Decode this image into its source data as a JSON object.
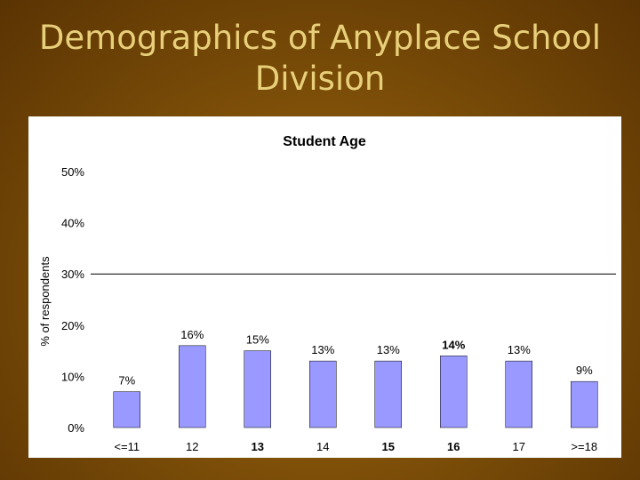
{
  "slide": {
    "title_line1": "Demographics of Anyplace School",
    "title_line2": "Division"
  },
  "chart_data": {
    "type": "bar",
    "title": "Student Age",
    "ylabel": "% of respondents",
    "xlabel": "",
    "categories": [
      "<=11",
      "12",
      "13",
      "14",
      "15",
      "16",
      "17",
      ">=18"
    ],
    "values": [
      7,
      16,
      15,
      13,
      13,
      14,
      13,
      9
    ],
    "bold_categories": [
      "13",
      "15",
      "16"
    ],
    "bold_value_labels": [
      "14%"
    ],
    "value_labels": [
      "7%",
      "16%",
      "15%",
      "13%",
      "13%",
      "14%",
      "13%",
      "9%"
    ],
    "ylim": [
      0,
      50
    ],
    "yticks": [
      0,
      10,
      20,
      30,
      40,
      50
    ],
    "ytick_labels": [
      "0%",
      "10%",
      "20%",
      "30%",
      "40%",
      "50%"
    ],
    "reference_line": 30,
    "grid": false,
    "legend": "none",
    "bar_color": "#9999ff"
  }
}
